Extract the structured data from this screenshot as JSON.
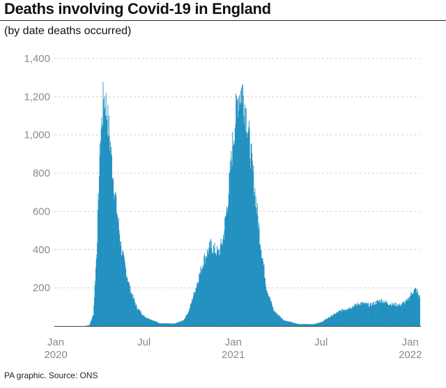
{
  "title": "Deaths involving Covid-19 in England",
  "subtitle": "(by date deaths occurred)",
  "source": "PA graphic. Source: ONS",
  "colors": {
    "bar": "#1f8fbf",
    "grid": "#cfcfcf",
    "tick_text": "#8a8a8a"
  },
  "chart_data": {
    "type": "bar",
    "ylim": [
      0,
      1400
    ],
    "yticks": [
      {
        "value": 200,
        "label": "200"
      },
      {
        "value": 400,
        "label": "400"
      },
      {
        "value": 600,
        "label": "600"
      },
      {
        "value": 800,
        "label": "800"
      },
      {
        "value": 1000,
        "label": "1,000"
      },
      {
        "value": 1200,
        "label": "1,200"
      },
      {
        "value": 1400,
        "label": "1,400"
      }
    ],
    "xticks": [
      {
        "date": "2020-01-01",
        "label": "Jan",
        "sublabel": "2020"
      },
      {
        "date": "2020-07-01",
        "label": "Jul",
        "sublabel": ""
      },
      {
        "date": "2021-01-01",
        "label": "Jan",
        "sublabel": "2021"
      },
      {
        "date": "2021-07-01",
        "label": "Jul",
        "sublabel": ""
      },
      {
        "date": "2022-01-01",
        "label": "Jan",
        "sublabel": "2022"
      }
    ],
    "xlim": [
      "2020-01-01",
      "2022-01-20"
    ],
    "series_keypoints": [
      [
        "2020-01-01",
        0
      ],
      [
        "2020-03-01",
        0
      ],
      [
        "2020-03-10",
        5
      ],
      [
        "2020-03-18",
        60
      ],
      [
        "2020-03-25",
        400
      ],
      [
        "2020-04-01",
        950
      ],
      [
        "2020-04-08",
        1200
      ],
      [
        "2020-04-12",
        1180
      ],
      [
        "2020-04-20",
        1000
      ],
      [
        "2020-05-01",
        700
      ],
      [
        "2020-05-15",
        400
      ],
      [
        "2020-06-01",
        200
      ],
      [
        "2020-06-15",
        100
      ],
      [
        "2020-07-01",
        50
      ],
      [
        "2020-08-01",
        15
      ],
      [
        "2020-09-01",
        12
      ],
      [
        "2020-09-20",
        30
      ],
      [
        "2020-10-01",
        80
      ],
      [
        "2020-10-15",
        200
      ],
      [
        "2020-11-01",
        350
      ],
      [
        "2020-11-15",
        420
      ],
      [
        "2020-12-01",
        380
      ],
      [
        "2020-12-10",
        450
      ],
      [
        "2020-12-20",
        650
      ],
      [
        "2021-01-01",
        1000
      ],
      [
        "2021-01-10",
        1200
      ],
      [
        "2021-01-19",
        1240
      ],
      [
        "2021-01-28",
        1100
      ],
      [
        "2021-02-10",
        800
      ],
      [
        "2021-02-25",
        450
      ],
      [
        "2021-03-10",
        200
      ],
      [
        "2021-03-25",
        80
      ],
      [
        "2021-04-15",
        30
      ],
      [
        "2021-05-15",
        10
      ],
      [
        "2021-06-15",
        10
      ],
      [
        "2021-07-01",
        20
      ],
      [
        "2021-07-20",
        50
      ],
      [
        "2021-08-10",
        80
      ],
      [
        "2021-09-01",
        100
      ],
      [
        "2021-09-20",
        120
      ],
      [
        "2021-10-10",
        110
      ],
      [
        "2021-11-01",
        135
      ],
      [
        "2021-11-20",
        115
      ],
      [
        "2021-12-10",
        110
      ],
      [
        "2021-12-25",
        130
      ],
      [
        "2022-01-05",
        180
      ],
      [
        "2022-01-12",
        190
      ],
      [
        "2022-01-20",
        150
      ]
    ]
  }
}
